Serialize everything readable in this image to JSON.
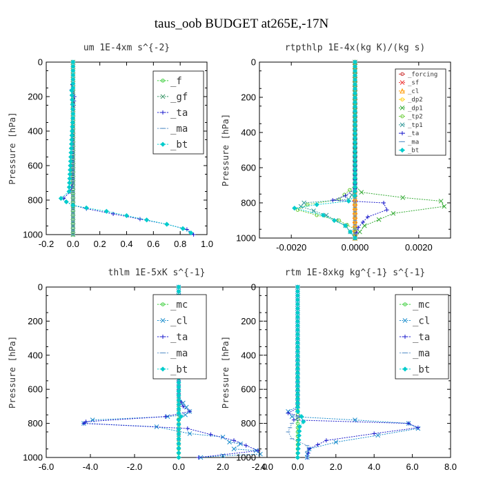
{
  "title": "taus_oob  BUDGET at265E,-17N",
  "chart_data": [
    {
      "type": "line",
      "title": "um   1E-4xm s^{-2}",
      "ylabel": "Pressure [hPa]",
      "xlim": [
        -0.2,
        1.0
      ],
      "ylim": [
        1000,
        0
      ],
      "xticks": [
        -0.2,
        0.0,
        0.2,
        0.4,
        0.6,
        0.8,
        1.0
      ],
      "xtick_labels": [
        "-0.2",
        "0.0",
        "0.2",
        "0.4",
        "0.6",
        "0.8",
        "1.0"
      ],
      "yticks": [
        0,
        200,
        400,
        600,
        800,
        1000
      ],
      "ytick_labels": [
        "0",
        "200",
        "400",
        "600",
        "800",
        "1000"
      ],
      "legend_position": "top-right",
      "series": [
        {
          "name": "_f",
          "color": "#33cc33",
          "marker": "circle",
          "x": [
            0,
            0,
            0,
            0,
            0,
            0,
            0,
            0,
            0,
            0,
            0
          ],
          "y": [
            0,
            100,
            200,
            300,
            400,
            500,
            600,
            700,
            800,
            900,
            1000
          ]
        },
        {
          "name": "_gf",
          "color": "#2f8f5f",
          "marker": "x",
          "x": [
            0,
            0,
            0,
            0,
            0,
            0,
            0,
            0,
            0,
            0,
            0
          ],
          "y": [
            0,
            100,
            200,
            300,
            400,
            500,
            600,
            700,
            800,
            900,
            1000
          ]
        },
        {
          "name": "_ta",
          "color": "#1a1acc",
          "marker": "plus",
          "x": [
            0,
            0,
            -0.01,
            0.01,
            0,
            0,
            0,
            -0.02,
            -0.07,
            -0.05,
            0,
            0.1,
            0.3,
            0.5,
            0.7,
            0.85,
            0.9
          ],
          "y": [
            0,
            100,
            160,
            200,
            300,
            500,
            700,
            750,
            790,
            810,
            830,
            850,
            880,
            910,
            940,
            970,
            1000
          ]
        },
        {
          "name": "_ma",
          "color": "#6699cc",
          "marker": "dash",
          "x": [
            0,
            0,
            0,
            0,
            0
          ],
          "y": [
            0,
            250,
            500,
            750,
            1000
          ]
        },
        {
          "name": "_bt",
          "color": "#00cccc",
          "marker": "diamond",
          "x": [
            0,
            0,
            -0.01,
            0,
            -0.03,
            -0.09,
            -0.05,
            0.0,
            0.1,
            0.25,
            0.4,
            0.55,
            0.7,
            0.82,
            0.88
          ],
          "y": [
            0,
            150,
            165,
            300,
            750,
            790,
            810,
            830,
            845,
            865,
            890,
            915,
            940,
            965,
            990
          ]
        }
      ]
    },
    {
      "type": "line",
      "title": "rtpthlp   1E-4x(kg K)/(kg s)",
      "ylabel": "Pressure [hPa]",
      "xlim": [
        -0.003,
        0.003
      ],
      "ylim": [
        1000,
        0
      ],
      "xticks": [
        -0.002,
        0.0,
        0.002
      ],
      "xtick_labels": [
        "-0.0020",
        "0.0000",
        "0.0020"
      ],
      "yticks": [
        0,
        200,
        400,
        600,
        800,
        1000
      ],
      "ytick_labels": [
        "0",
        "200",
        "400",
        "600",
        "800",
        "1000"
      ],
      "legend_position": "top-right",
      "series": [
        {
          "name": "_forcing",
          "color": "#cc3333",
          "marker": "circle",
          "x": [
            0,
            0,
            0,
            0,
            0,
            0,
            0,
            0,
            0,
            0,
            0
          ],
          "y": [
            0,
            100,
            200,
            300,
            400,
            500,
            600,
            700,
            800,
            900,
            1000
          ]
        },
        {
          "name": "_sf",
          "color": "#ee3333",
          "marker": "x",
          "x": [
            0,
            0
          ],
          "y": [
            0,
            1000
          ]
        },
        {
          "name": "_cl",
          "color": "#ff9900",
          "marker": "triangle",
          "x": [
            0,
            0,
            0
          ],
          "y": [
            0,
            500,
            1000
          ]
        },
        {
          "name": "_dp2",
          "color": "#ffcc00",
          "marker": "circle",
          "x": [
            0,
            0
          ],
          "y": [
            0,
            1000
          ]
        },
        {
          "name": "_dp1",
          "color": "#33aa33",
          "marker": "x",
          "x": [
            0,
            0,
            0.0002,
            0.0015,
            0.0027,
            0.0028,
            0.0012,
            0.0003,
            0
          ],
          "y": [
            0,
            700,
            740,
            770,
            790,
            820,
            860,
            930,
            1000
          ]
        },
        {
          "name": "_tp2",
          "color": "#66cc33",
          "marker": "circle",
          "x": [
            0,
            0,
            -0.0005,
            -0.0015,
            -0.0018,
            -0.0012,
            -0.0005,
            0,
            0
          ],
          "y": [
            0,
            700,
            780,
            810,
            840,
            870,
            900,
            950,
            1000
          ]
        },
        {
          "name": "_tp1",
          "color": "#339999",
          "marker": "x",
          "x": [
            0,
            0,
            -0.0002,
            -0.0016,
            -0.0017,
            -0.0009,
            -0.0003,
            0
          ],
          "y": [
            0,
            730,
            780,
            800,
            820,
            870,
            930,
            1000
          ]
        },
        {
          "name": "_ta",
          "color": "#1a1acc",
          "marker": "plus",
          "x": [
            0,
            0,
            -0.0003,
            -0.0007,
            0.0009,
            0.001,
            0.0004,
            0.0001,
            0
          ],
          "y": [
            0,
            720,
            760,
            785,
            800,
            840,
            880,
            940,
            1000
          ]
        },
        {
          "name": "_ma",
          "color": "#6699cc",
          "marker": "dash",
          "x": [
            0,
            0
          ],
          "y": [
            0,
            1000
          ]
        },
        {
          "name": "_bt",
          "color": "#00cccc",
          "marker": "diamond",
          "x": [
            0,
            0,
            -0.0002,
            -0.0012,
            -0.0019,
            -0.001,
            -0.0003,
            0
          ],
          "y": [
            0,
            760,
            790,
            810,
            830,
            870,
            930,
            1000
          ]
        }
      ]
    },
    {
      "type": "line",
      "title": "thlm   1E-5xK s^{-1}",
      "ylabel": "Pressure [hPa]",
      "xlim": [
        -6.0,
        4.0
      ],
      "ylim": [
        1000,
        0
      ],
      "xticks": [
        -6.0,
        -4.0,
        -2.0,
        0.0,
        2.0,
        4.0
      ],
      "xtick_labels": [
        "-6.0",
        "-4.0",
        "-2.0",
        "0.0",
        "2.0",
        "4.0"
      ],
      "yticks": [
        0,
        200,
        400,
        600,
        800,
        1000
      ],
      "ytick_labels": [
        "0",
        "200",
        "400",
        "600",
        "800",
        "1000"
      ],
      "legend_position": "top-right",
      "series": [
        {
          "name": "_mc",
          "color": "#33cc33",
          "marker": "circle",
          "x": [
            0,
            0,
            0,
            0,
            0,
            0,
            0,
            0,
            0,
            0,
            0
          ],
          "y": [
            0,
            100,
            200,
            300,
            400,
            500,
            600,
            700,
            800,
            900,
            1000
          ]
        },
        {
          "name": "_cl",
          "color": "#1a8ccc",
          "marker": "x",
          "x": [
            0,
            0,
            0.2,
            0.5,
            0.3,
            -0.5,
            -3.9,
            -4.3,
            -1.0,
            0.5,
            2.0,
            2.3,
            2.8,
            2.5,
            3.5,
            3.7,
            2.0,
            1.0
          ],
          "y": [
            0,
            640,
            680,
            730,
            750,
            760,
            780,
            800,
            820,
            860,
            880,
            910,
            920,
            950,
            960,
            980,
            990,
            1000
          ]
        },
        {
          "name": "_ta",
          "color": "#1a1acc",
          "marker": "plus",
          "x": [
            0,
            0,
            0.2,
            0.5,
            -0.6,
            -4.2,
            -4.3,
            0.4,
            2.5,
            3.6,
            0.9
          ],
          "y": [
            0,
            650,
            700,
            730,
            760,
            790,
            800,
            830,
            900,
            960,
            1000
          ]
        },
        {
          "name": "_ma",
          "color": "#6699cc",
          "marker": "dash",
          "x": [
            0,
            0
          ],
          "y": [
            0,
            1000
          ]
        },
        {
          "name": "_bt",
          "color": "#00cccc",
          "marker": "diamond",
          "x": [
            0,
            0,
            0.1,
            0,
            0
          ],
          "y": [
            0,
            740,
            760,
            780,
            1000
          ]
        }
      ]
    },
    {
      "type": "line",
      "title": "rtm   1E-8xkg kg^{-1} s^{-1}",
      "ylabel": "Pressure [hPa]",
      "xlim": [
        -2.0,
        8.0
      ],
      "ylim": [
        1000,
        0
      ],
      "xticks": [
        -2.0,
        0.0,
        2.0,
        4.0,
        6.0,
        8.0
      ],
      "xtick_labels": [
        "-2.0",
        "0.0",
        "2.0",
        "4.0",
        "6.0",
        "8.0"
      ],
      "yticks": [
        0,
        200,
        400,
        600,
        800,
        1000
      ],
      "ytick_labels": [
        "0",
        "200",
        "400",
        "600",
        "800",
        "1000"
      ],
      "legend_position": "top-right",
      "series": [
        {
          "name": "_mc",
          "color": "#33cc33",
          "marker": "circle",
          "x": [
            0,
            0,
            0,
            0,
            0,
            0,
            0,
            0,
            0,
            0,
            0
          ],
          "y": [
            0,
            100,
            200,
            300,
            400,
            500,
            600,
            700,
            800,
            900,
            1000
          ]
        },
        {
          "name": "_cl",
          "color": "#1a8ccc",
          "marker": "x",
          "x": [
            0,
            0,
            -0.5,
            -0.3,
            3.0,
            5.8,
            6.3,
            4.2,
            2.0,
            0.6,
            0.5,
            0.5
          ],
          "y": [
            0,
            700,
            730,
            760,
            780,
            800,
            830,
            870,
            910,
            950,
            980,
            1000
          ]
        },
        {
          "name": "_ta",
          "color": "#1a1acc",
          "marker": "plus",
          "x": [
            0,
            0,
            -0.5,
            0.2,
            -0.2,
            5.8,
            6.3,
            4.0,
            1.5,
            0.6,
            0.5
          ],
          "y": [
            0,
            710,
            740,
            760,
            780,
            800,
            825,
            860,
            900,
            950,
            1000
          ]
        },
        {
          "name": "_ma",
          "color": "#6699cc",
          "marker": "dash",
          "x": [
            0,
            0,
            -0.3,
            -0.5,
            -0.3,
            0.5,
            0.5
          ],
          "y": [
            0,
            760,
            800,
            850,
            890,
            930,
            1000
          ]
        },
        {
          "name": "_bt",
          "color": "#00cccc",
          "marker": "diamond",
          "x": [
            0,
            0,
            0.2,
            0.3,
            0.1,
            0
          ],
          "y": [
            0,
            730,
            760,
            790,
            820,
            1000
          ]
        }
      ]
    }
  ]
}
